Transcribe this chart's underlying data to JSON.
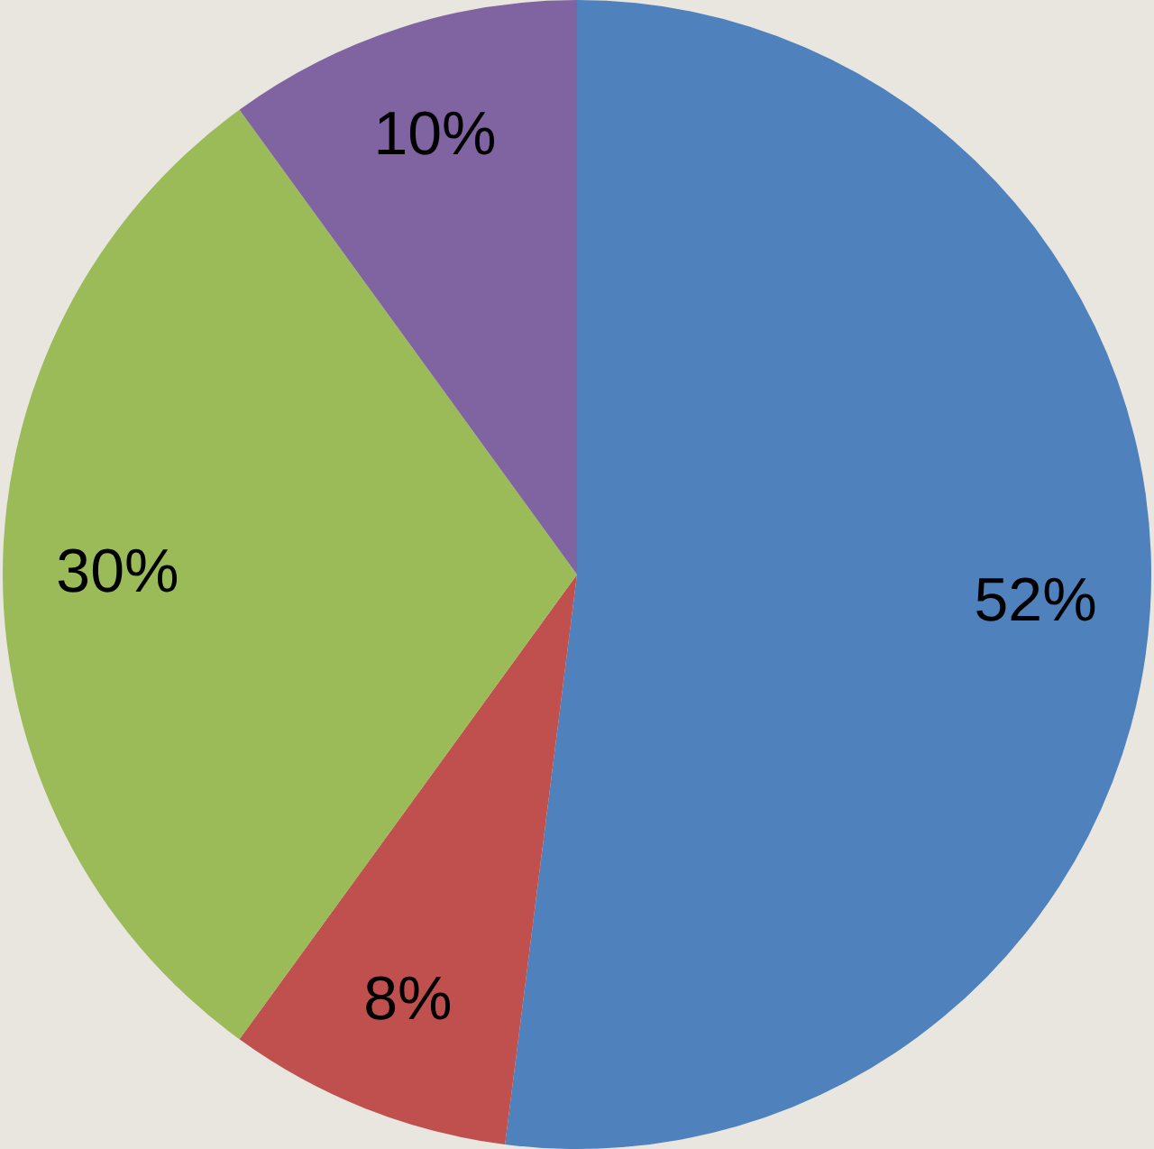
{
  "chart_data": {
    "type": "pie",
    "categories": [
      null,
      null,
      null,
      null
    ],
    "values": [
      52,
      8,
      30,
      10
    ],
    "colors": [
      "#4f81bd",
      "#c0504d",
      "#9bbb59",
      "#8064a2"
    ],
    "value_labels": [
      "52%",
      "8%",
      "30%",
      "10%"
    ]
  }
}
